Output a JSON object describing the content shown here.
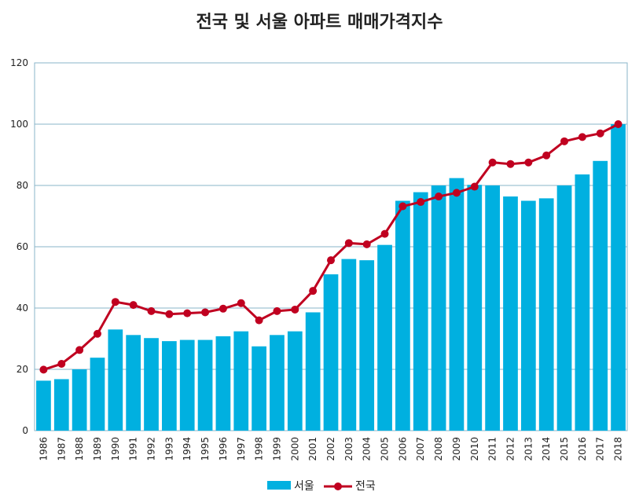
{
  "chart_data": {
    "type": "bar+line",
    "title": "전국 및 서울 아파트 매매가격지수",
    "categories": [
      "1986",
      "1987",
      "1988",
      "1989",
      "1990",
      "1991",
      "1992",
      "1993",
      "1994",
      "1995",
      "1996",
      "1997",
      "1998",
      "1999",
      "2000",
      "2001",
      "2002",
      "2003",
      "2004",
      "2005",
      "2006",
      "2007",
      "2008",
      "2009",
      "2010",
      "2011",
      "2012",
      "2013",
      "2014",
      "2015",
      "2016",
      "2017",
      "2018"
    ],
    "series": [
      {
        "name": "서울",
        "type": "bar",
        "color": "#00b0e0",
        "values": [
          16.3,
          16.8,
          20.0,
          23.8,
          33.0,
          31.2,
          30.2,
          29.2,
          29.6,
          29.6,
          30.8,
          32.4,
          27.5,
          31.2,
          32.4,
          38.6,
          51.0,
          56.0,
          55.6,
          60.6,
          75.0,
          77.8,
          80.0,
          82.4,
          80.2,
          80.0,
          76.4,
          75.0,
          75.8,
          80.0,
          83.6,
          88.0,
          100.0
        ]
      },
      {
        "name": "전국",
        "type": "line",
        "color": "#c00020",
        "values": [
          19.9,
          21.8,
          26.3,
          31.6,
          42.0,
          41.0,
          39.0,
          38.0,
          38.3,
          38.6,
          39.8,
          41.6,
          36.0,
          39.0,
          39.5,
          45.6,
          55.6,
          61.2,
          60.8,
          64.2,
          73.2,
          74.6,
          76.4,
          77.6,
          79.6,
          87.5,
          87.0,
          87.5,
          89.8,
          94.4,
          95.8,
          97.0,
          100.0
        ]
      }
    ],
    "ylim": [
      0,
      120
    ],
    "yticks": [
      0,
      20,
      40,
      60,
      80,
      100,
      120
    ],
    "grid": true,
    "legend_position": "bottom"
  }
}
